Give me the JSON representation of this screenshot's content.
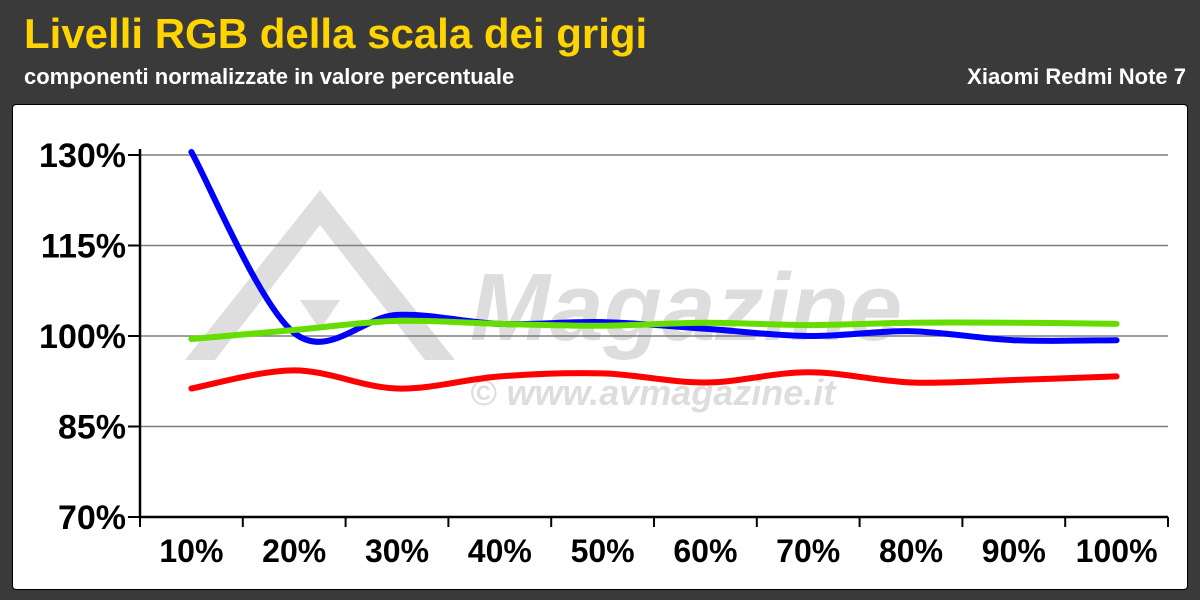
{
  "header": {
    "title": "Livelli RGB della scala dei grigi",
    "subtitle": "componenti normalizzate in valore percentuale",
    "device": "Xiaomi Redmi Note 7"
  },
  "watermark": {
    "brand": "Magazine",
    "url": "© www.avmagazine.it"
  },
  "colors": {
    "header_bg": "#3a3a3a",
    "title": "#ffd400",
    "red": "#ff0000",
    "green": "#66dd00",
    "blue": "#0000ff",
    "grid": "#7f7f7f"
  },
  "chart_data": {
    "type": "line",
    "categories": [
      "10%",
      "20%",
      "30%",
      "40%",
      "50%",
      "60%",
      "70%",
      "80%",
      "90%",
      "100%"
    ],
    "y_ticks": [
      "70%",
      "85%",
      "100%",
      "115%",
      "130%"
    ],
    "ylim": [
      70,
      130
    ],
    "grid": true,
    "legend": "none",
    "series": [
      {
        "color": "#0000ff",
        "values": [
          130.5,
          100.5,
          103.5,
          102.0,
          102.3,
          101.2,
          100.0,
          100.8,
          99.3,
          99.3
        ]
      },
      {
        "color": "#66dd00",
        "values": [
          99.5,
          101.0,
          102.5,
          102.0,
          101.7,
          102.2,
          101.8,
          102.2,
          102.2,
          102.0
        ]
      },
      {
        "color": "#ff0000",
        "values": [
          91.3,
          94.3,
          91.3,
          93.3,
          93.8,
          92.3,
          94.0,
          92.3,
          92.7,
          93.3
        ]
      }
    ]
  }
}
